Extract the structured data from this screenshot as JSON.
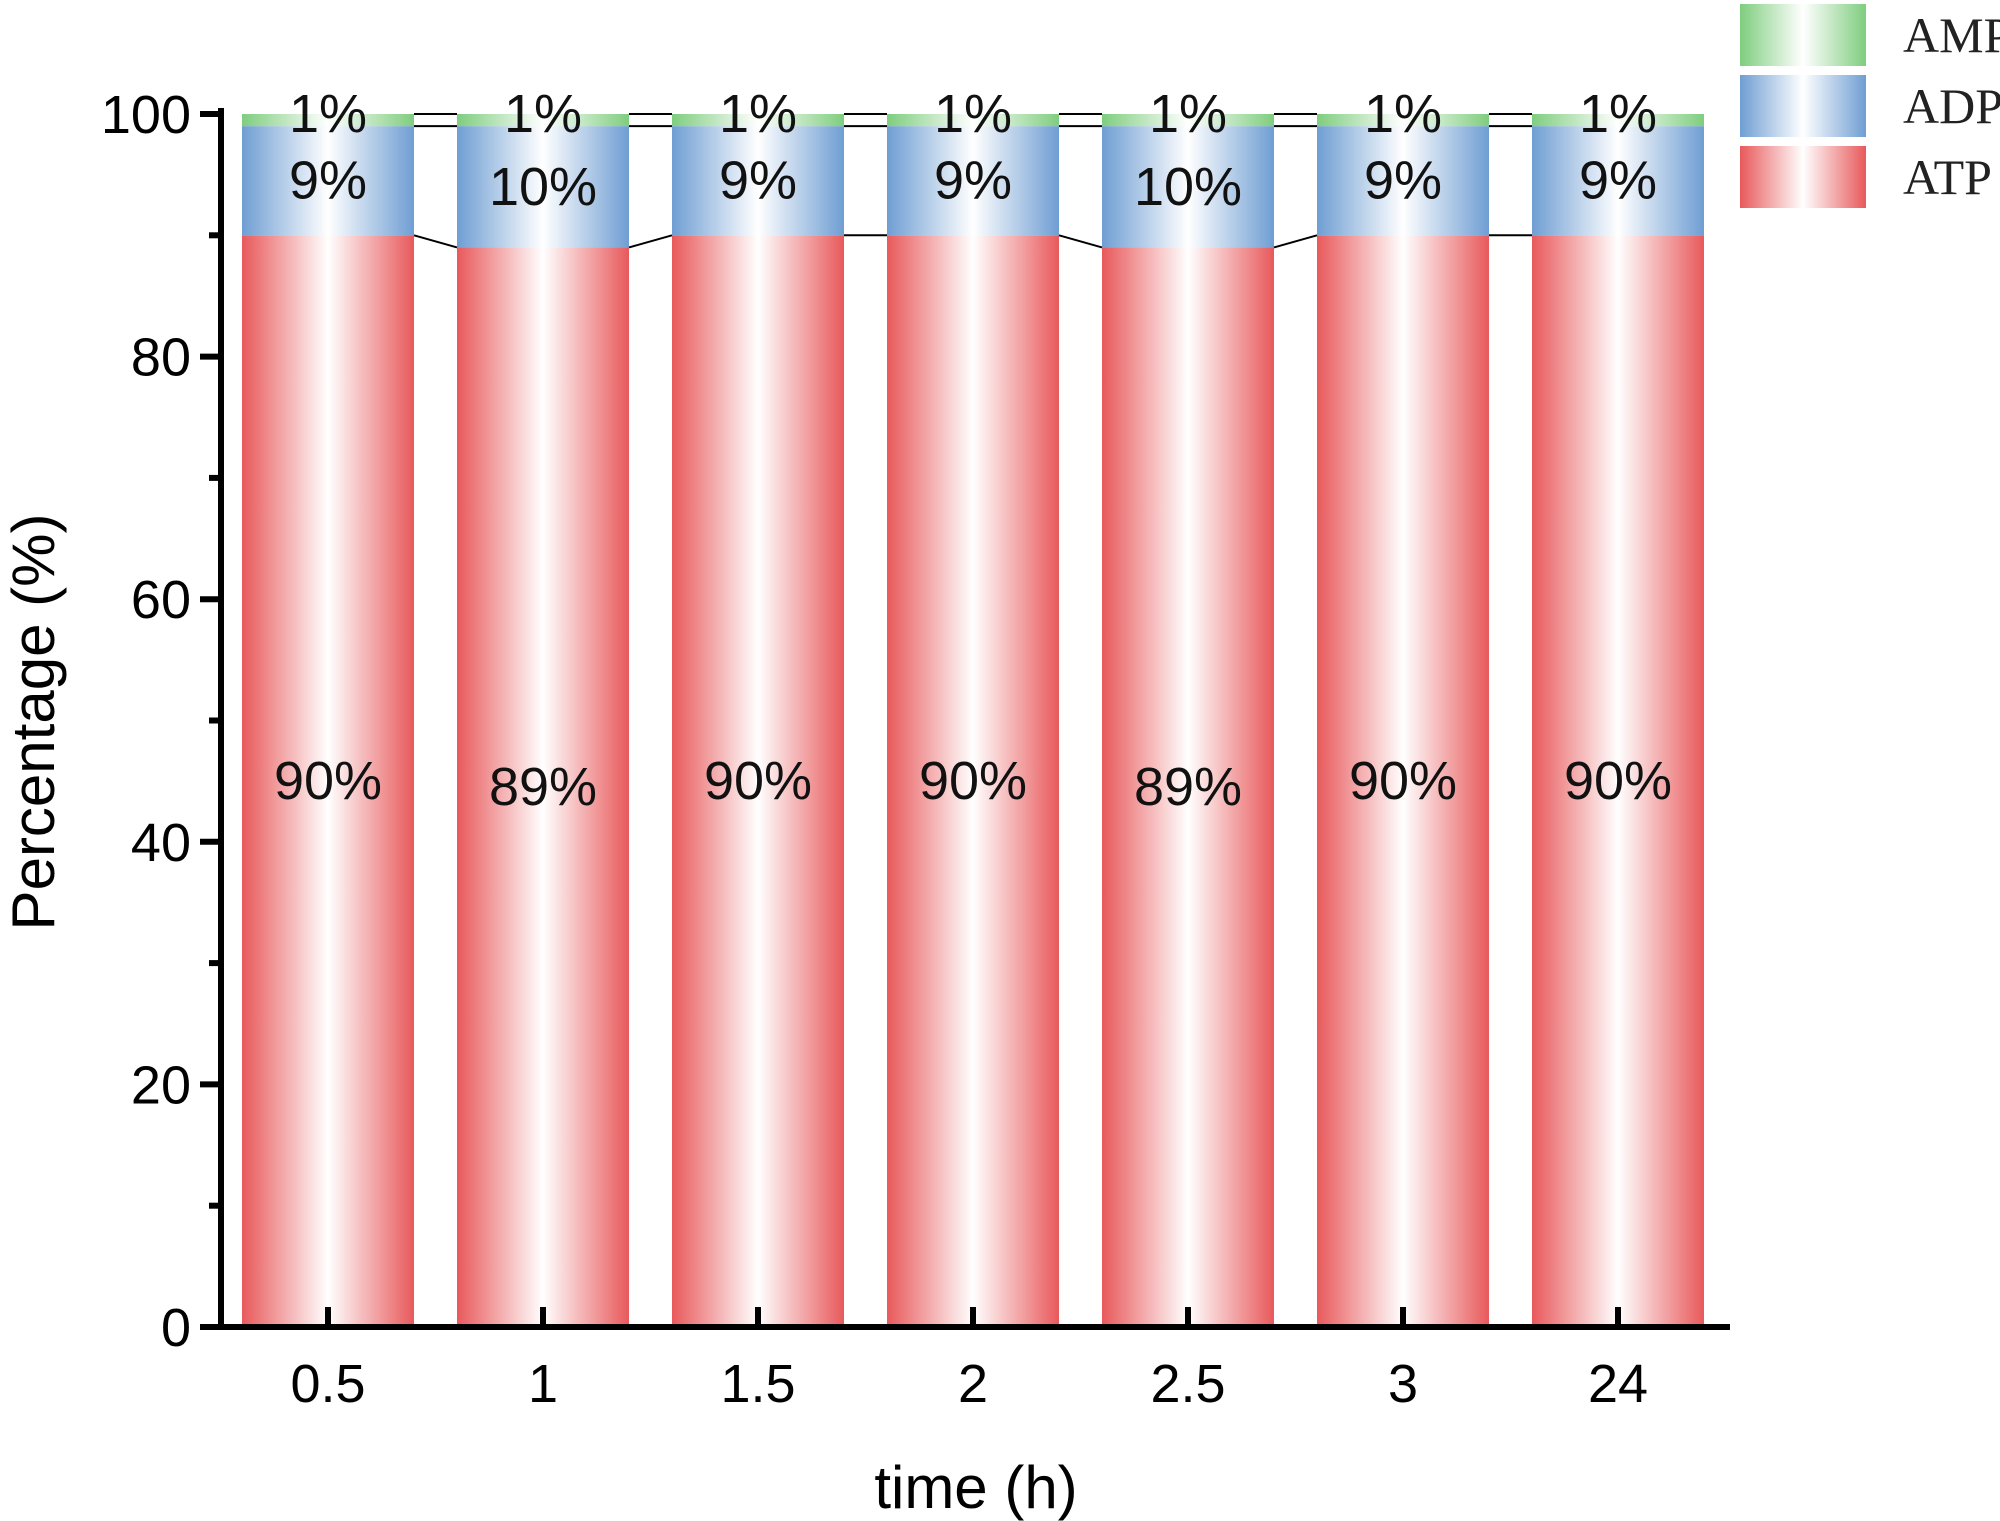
{
  "chart_data": {
    "type": "bar",
    "stacked": true,
    "normalized": true,
    "categories": [
      "0.5",
      "1",
      "1.5",
      "2",
      "2.5",
      "3",
      "24"
    ],
    "series": [
      {
        "name": "ATP",
        "color": "#e8595b",
        "values": [
          90,
          89,
          90,
          90,
          89,
          90,
          90
        ],
        "labels": [
          "90%",
          "89%",
          "90%",
          "90%",
          "89%",
          "90%",
          "90%"
        ]
      },
      {
        "name": "ADP",
        "color": "#6f9ed3",
        "values": [
          9,
          10,
          9,
          9,
          10,
          9,
          9
        ],
        "labels": [
          "9%",
          "10%",
          "9%",
          "9%",
          "10%",
          "9%",
          "9%"
        ]
      },
      {
        "name": "AMP",
        "color": "#7fcd7f",
        "values": [
          1,
          1,
          1,
          1,
          1,
          1,
          1
        ],
        "labels": [
          "1%",
          "1%",
          "1%",
          "1%",
          "1%",
          "1%",
          "1%"
        ]
      }
    ],
    "title": "",
    "xlabel": "time (h)",
    "ylabel": "Percentage (%)",
    "ylim": [
      0,
      100
    ],
    "yticks": [
      "0",
      "20",
      "40",
      "60",
      "80",
      "100"
    ],
    "grid": false,
    "legend": "top-right",
    "legend_order": [
      "AMP",
      "ADP",
      "ATP"
    ],
    "connector_lines": true
  }
}
